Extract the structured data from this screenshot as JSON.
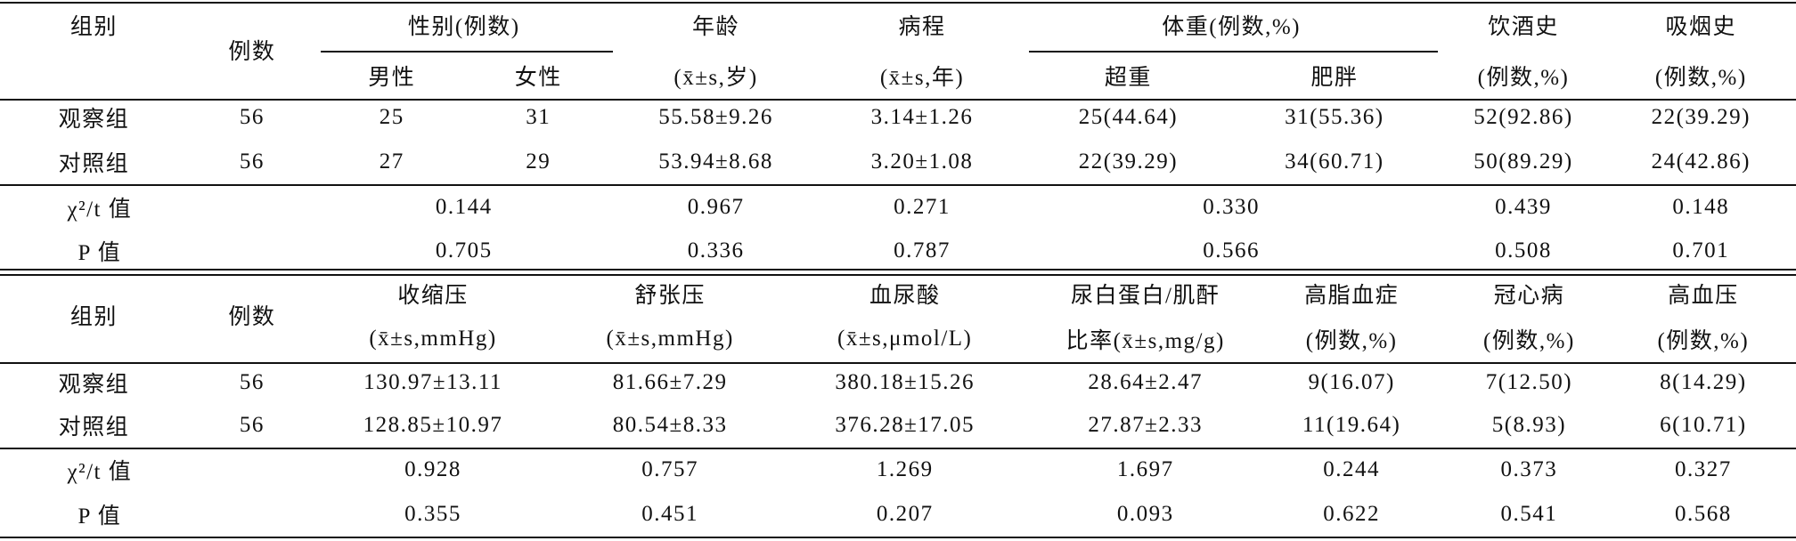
{
  "table1": {
    "header_row1": [
      "组别",
      "例数",
      "性别(例数)",
      "年龄",
      "病程",
      "体重(例数,%)",
      "饮酒史",
      "吸烟史"
    ],
    "header_row2": [
      "男性",
      "女性",
      "(x̄±s,岁)",
      "(x̄±s,年)",
      "超重",
      "肥胖",
      "(例数,%)",
      "(例数,%)"
    ],
    "rows": [
      [
        "观察组",
        "56",
        "25",
        "31",
        "55.58±9.26",
        "3.14±1.26",
        "25(44.64)",
        "31(55.36)",
        "52(92.86)",
        "22(39.29)"
      ],
      [
        "对照组",
        "56",
        "27",
        "29",
        "53.94±8.68",
        "3.20±1.08",
        "22(39.29)",
        "34(60.71)",
        "50(89.29)",
        "24(42.86)"
      ]
    ],
    "stats": [
      [
        "χ²/t 值",
        "0.144",
        "0.967",
        "0.271",
        "0.330",
        "0.439",
        "0.148"
      ],
      [
        "P 值",
        "0.705",
        "0.336",
        "0.787",
        "0.566",
        "0.508",
        "0.701"
      ]
    ]
  },
  "table2": {
    "header_row1": [
      "组别",
      "例数",
      "收缩压",
      "舒张压",
      "血尿酸",
      "尿白蛋白/肌酐",
      "高脂血症",
      "冠心病",
      "高血压"
    ],
    "header_row2": [
      "(x̄±s,mmHg)",
      "(x̄±s,mmHg)",
      "(x̄±s,μmol/L)",
      "比率(x̄±s,mg/g)",
      "(例数,%)",
      "(例数,%)",
      "(例数,%)"
    ],
    "rows": [
      [
        "观察组",
        "56",
        "130.97±13.11",
        "81.66±7.29",
        "380.18±15.26",
        "28.64±2.47",
        "9(16.07)",
        "7(12.50)",
        "8(14.29)"
      ],
      [
        "对照组",
        "56",
        "128.85±10.97",
        "80.54±8.33",
        "376.28±17.05",
        "27.87±2.33",
        "11(19.64)",
        "5(8.93)",
        "6(10.71)"
      ]
    ],
    "stats": [
      [
        "χ²/t 值",
        "0.928",
        "0.757",
        "1.269",
        "1.697",
        "0.244",
        "0.373",
        "0.327"
      ],
      [
        "P 值",
        "0.355",
        "0.451",
        "0.207",
        "0.093",
        "0.622",
        "0.541",
        "0.568"
      ]
    ]
  }
}
